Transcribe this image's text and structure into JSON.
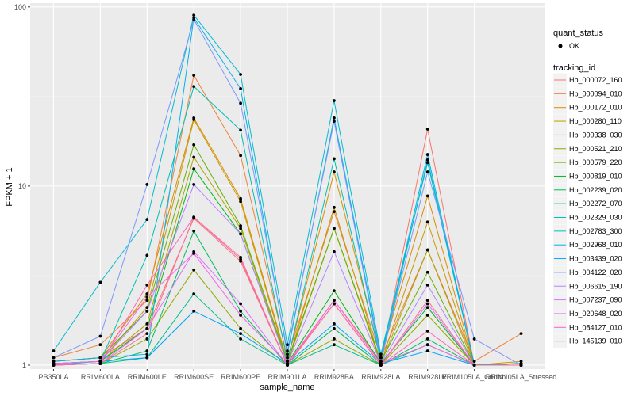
{
  "chart_data": {
    "type": "line",
    "xlabel": "sample_name",
    "ylabel": "FPKM + 1",
    "y_scale": "log10",
    "ylim": [
      0.95,
      105
    ],
    "y_ticks": [
      1,
      10,
      100
    ],
    "y_tick_labels": [
      "1",
      "10",
      "100"
    ],
    "categories": [
      "PB350LA",
      "RRIM600LA",
      "RRIM600LE",
      "RRIM600SE",
      "RRIM600PE",
      "RRIM901LA",
      "RRIM928BA",
      "RRIM928LA",
      "RRIM928LE",
      "RRIM105LA_Control",
      "RRIM105LA_Stressed"
    ],
    "panel_background": "#ebebeb",
    "grid": true,
    "legend_position": "right",
    "shape_legend": {
      "title": "quant_status",
      "entries": [
        "OK"
      ]
    },
    "color_legend_title": "tracking_id",
    "series": [
      {
        "name": "Hb_000072_160",
        "color": "#F8766D",
        "values": [
          1.05,
          1.1,
          1.6,
          6.6,
          3.8,
          1.0,
          2.3,
          1.05,
          20.8,
          1.0,
          1.02
        ]
      },
      {
        "name": "Hb_000094_010",
        "color": "#EC8239",
        "values": [
          1.1,
          1.3,
          2.3,
          41.5,
          14.8,
          1.1,
          7.2,
          1.1,
          4.4,
          1.05,
          1.5
        ]
      },
      {
        "name": "Hb_000172_010",
        "color": "#DB8E00",
        "values": [
          1.05,
          1.1,
          2.5,
          24.0,
          8.5,
          1.05,
          12.0,
          1.1,
          8.8,
          1.0,
          1.05
        ]
      },
      {
        "name": "Hb_000280_110",
        "color": "#C79800",
        "values": [
          1.02,
          1.05,
          2.1,
          23.5,
          8.2,
          1.02,
          7.6,
          1.02,
          6.3,
          1.0,
          1.02
        ]
      },
      {
        "name": "Hb_000338_030",
        "color": "#AEA200",
        "values": [
          1.02,
          1.05,
          1.7,
          14.5,
          5.8,
          1.02,
          5.8,
          1.02,
          4.4,
          1.0,
          1.0
        ]
      },
      {
        "name": "Hb_000521_210",
        "color": "#8FAA00",
        "values": [
          1.0,
          1.02,
          1.4,
          3.4,
          1.6,
          1.0,
          1.4,
          1.0,
          1.9,
          1.0,
          1.0
        ]
      },
      {
        "name": "Hb_000579_220",
        "color": "#64B200",
        "values": [
          1.05,
          1.1,
          2.0,
          17.0,
          6.0,
          1.05,
          5.8,
          1.05,
          3.3,
          1.0,
          1.02
        ]
      },
      {
        "name": "Hb_000819_010",
        "color": "#00B81B",
        "values": [
          1.02,
          1.05,
          1.6,
          12.5,
          5.4,
          1.02,
          2.6,
          1.02,
          2.1,
          1.0,
          1.02
        ]
      },
      {
        "name": "Hb_002239_020",
        "color": "#00BD5C",
        "values": [
          1.0,
          1.02,
          1.2,
          5.6,
          2.0,
          1.0,
          1.6,
          1.0,
          1.4,
          1.0,
          1.0
        ]
      },
      {
        "name": "Hb_002272_070",
        "color": "#00C08E",
        "values": [
          1.0,
          1.02,
          1.1,
          2.5,
          1.4,
          1.0,
          1.3,
          1.0,
          1.3,
          1.0,
          1.0
        ]
      },
      {
        "name": "Hb_002329_030",
        "color": "#00C1B2",
        "values": [
          1.0,
          1.05,
          4.1,
          36.0,
          20.5,
          1.05,
          14.2,
          1.05,
          14.0,
          1.0,
          1.02
        ]
      },
      {
        "name": "Hb_002783_300",
        "color": "#00BCD1",
        "values": [
          1.2,
          2.9,
          6.5,
          90.0,
          42.0,
          1.3,
          30.0,
          1.15,
          13.5,
          1.0,
          1.02
        ]
      },
      {
        "name": "Hb_002968_010",
        "color": "#00B3E9",
        "values": [
          1.05,
          1.1,
          1.15,
          87.0,
          35.0,
          1.15,
          24.0,
          1.1,
          15.0,
          1.0,
          1.0
        ]
      },
      {
        "name": "Hb_003439_020",
        "color": "#00A5FC",
        "values": [
          1.02,
          1.05,
          1.1,
          2.0,
          1.5,
          1.02,
          1.7,
          1.02,
          1.2,
          1.0,
          1.0
        ]
      },
      {
        "name": "Hb_004122_020",
        "color": "#7997FF",
        "values": [
          1.1,
          1.45,
          10.2,
          85.0,
          29.0,
          1.2,
          23.0,
          1.05,
          12.0,
          1.4,
          1.0
        ]
      },
      {
        "name": "Hb_006615_190",
        "color": "#B385FF",
        "values": [
          1.02,
          1.05,
          2.0,
          10.2,
          5.4,
          1.02,
          4.3,
          1.02,
          2.8,
          1.0,
          1.0
        ]
      },
      {
        "name": "Hb_007237_090",
        "color": "#DB72FB",
        "values": [
          1.0,
          1.02,
          1.6,
          4.3,
          2.2,
          1.0,
          2.2,
          1.0,
          2.2,
          1.0,
          1.0
        ]
      },
      {
        "name": "Hb_020648_020",
        "color": "#F265E7",
        "values": [
          1.02,
          1.05,
          2.4,
          4.2,
          1.9,
          1.02,
          2.3,
          1.02,
          1.3,
          1.0,
          1.0
        ]
      },
      {
        "name": "Hb_084127_010",
        "color": "#FF62BC",
        "values": [
          1.0,
          1.02,
          2.8,
          6.7,
          3.9,
          1.0,
          2.2,
          1.0,
          1.55,
          1.0,
          1.0
        ]
      },
      {
        "name": "Hb_145139_010",
        "color": "#FF6C91",
        "values": [
          1.0,
          1.02,
          1.5,
          6.7,
          4.0,
          1.0,
          2.2,
          1.0,
          2.3,
          1.0,
          1.0
        ]
      }
    ]
  }
}
